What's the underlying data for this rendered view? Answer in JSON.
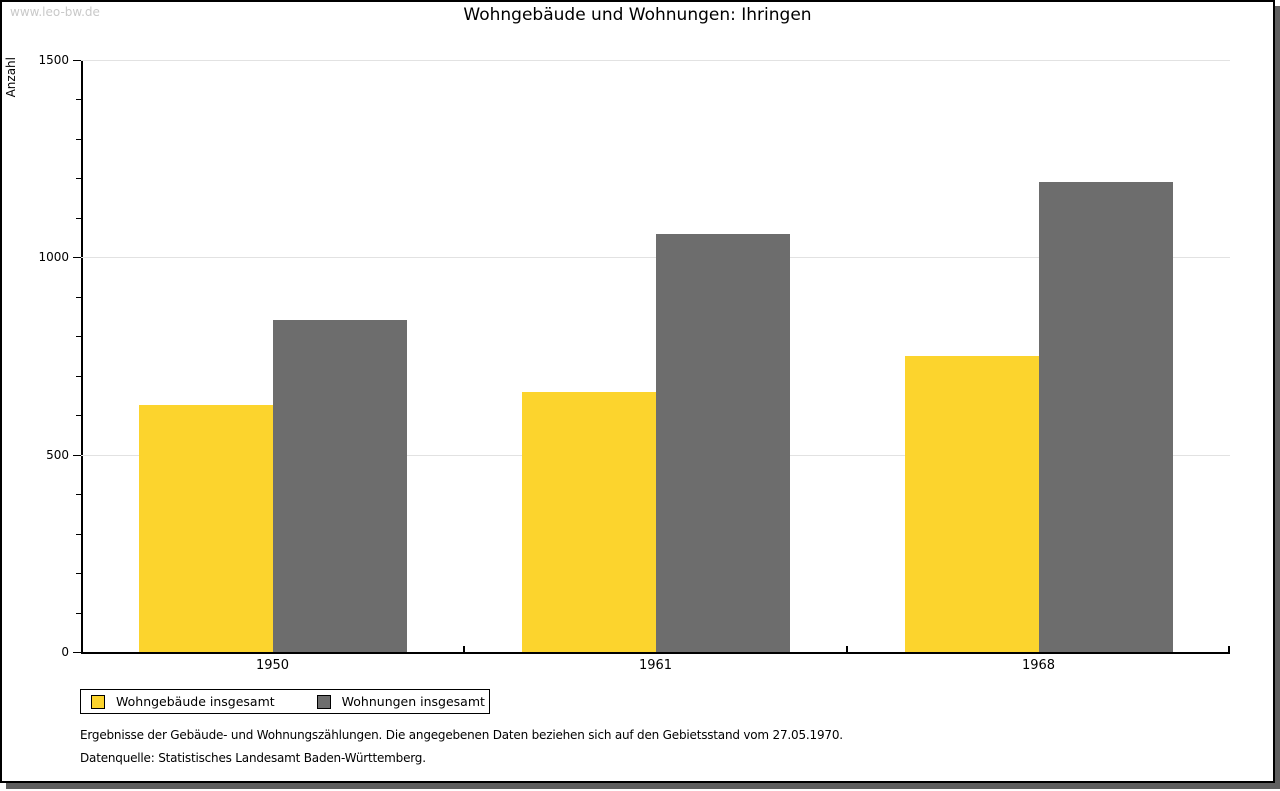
{
  "page": {
    "watermark": "www.leo-bw.de",
    "title": "Wohngebäude und Wohnungen: Ihringen"
  },
  "chart_data": {
    "type": "bar",
    "title": "Wohngebäude und Wohnungen: Ihringen",
    "ylabel": "Anzahl",
    "xlabel": "",
    "categories": [
      "1950",
      "1961",
      "1968"
    ],
    "series": [
      {
        "name": "Wohngebäude insgesamt",
        "color": "#fcd42d",
        "values": [
          625,
          660,
          750
        ]
      },
      {
        "name": "Wohnungen insgesamt",
        "color": "#6d6d6d",
        "values": [
          840,
          1060,
          1190
        ]
      }
    ],
    "ylim": [
      0,
      1500
    ],
    "ytick_major": 500,
    "ytick_minor": 100,
    "grid": true,
    "legend_position": "bottom-left"
  },
  "footnotes": {
    "line1": "Ergebnisse der Gebäude- und Wohnungszählungen. Die angegebenen Daten beziehen sich auf den Gebietsstand vom 27.05.1970.",
    "line2": "Datenquelle: Statistisches Landesamt Baden-Württemberg."
  },
  "colors": {
    "gridline": "#e2e2e2",
    "watermark": "#c9c9c9",
    "axis": "#000000",
    "shadow": "#5f5f5f"
  }
}
